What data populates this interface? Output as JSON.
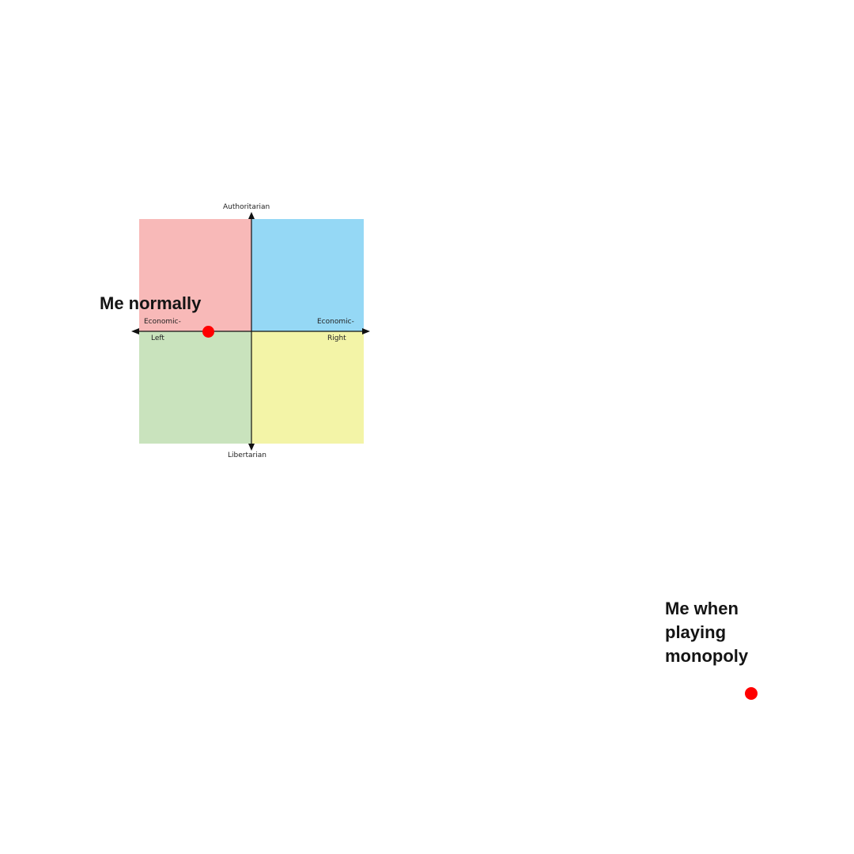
{
  "compass": {
    "axes": {
      "top_label": "Authoritarian",
      "bottom_label": "Libertarian",
      "left_label_line1": "Economic-",
      "left_label_line2": "Left",
      "right_label_line1": "Economic-",
      "right_label_line2": "Right"
    },
    "quadrant_colors": {
      "authoritarian_left": "#f8b9b8",
      "authoritarian_right": "#95d8f5",
      "libertarian_left": "#c9e3bd",
      "libertarian_right": "#f3f4a7"
    }
  },
  "markers": {
    "normal": {
      "label": "Me normally",
      "color": "#ff0000"
    },
    "monopoly": {
      "label_line1": "Me when",
      "label_line2": "playing",
      "label_line3": "monopoly",
      "color": "#ff0000"
    }
  }
}
